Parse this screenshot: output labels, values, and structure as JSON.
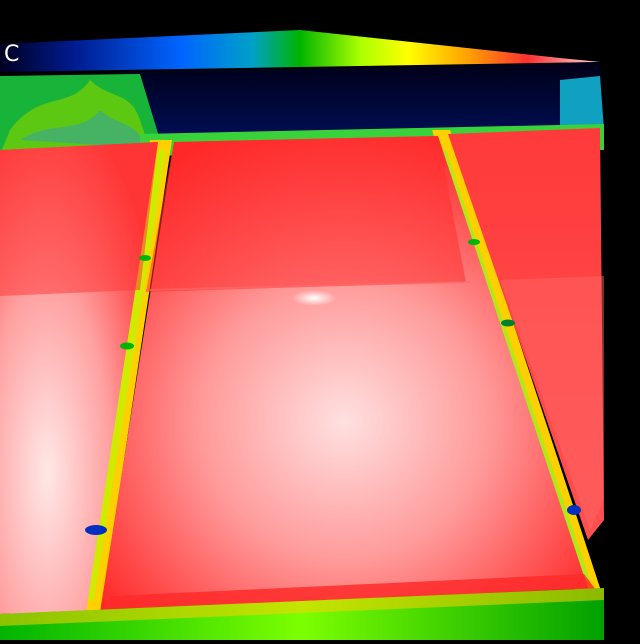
{
  "image": {
    "kind": "thermal-camera-capture",
    "palette": [
      "#000033",
      "#001a8c",
      "#0064ff",
      "#00c8ff",
      "#00b400",
      "#aaff00",
      "#ffff00",
      "#ffa000",
      "#ff2000",
      "#ff6e6e",
      "#ffe6e6"
    ]
  },
  "scale": {
    "unit_label": "C"
  },
  "colors": {
    "background": "#000000",
    "sky_cold": "#000a3a",
    "vegetation": "#2cc21a",
    "panel_hot": "#ff2a2a",
    "panel_hottest": "#ffe8e8",
    "frame_gap": "#ffd400"
  }
}
